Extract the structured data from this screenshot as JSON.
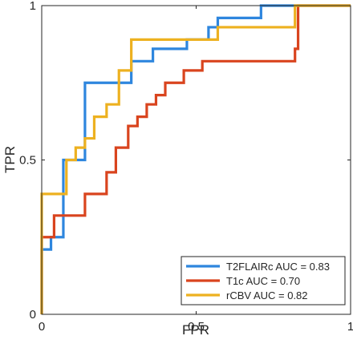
{
  "chart_data": {
    "type": "line",
    "title": "",
    "xlabel": "FPR",
    "ylabel": "TPR",
    "xlim": [
      0,
      1
    ],
    "ylim": [
      0,
      1
    ],
    "xticks": [
      0,
      0.5,
      1
    ],
    "xtick_labels": [
      "0",
      "0.5",
      "1"
    ],
    "yticks": [
      0,
      0.5,
      1
    ],
    "ytick_labels": [
      "0",
      "0.5",
      "1"
    ],
    "grid": false,
    "legend_position": "bottom-right",
    "series": [
      {
        "name": "T2FLAIRc AUC = 0.83",
        "color": "#2E86DE",
        "x": [
          0,
          0,
          0.03,
          0.03,
          0.07,
          0.07,
          0.14,
          0.14,
          0.25,
          0.25,
          0.29,
          0.29,
          0.36,
          0.36,
          0.47,
          0.47,
          0.54,
          0.54,
          0.57,
          0.57,
          0.71,
          0.71,
          0.82,
          0.82,
          1.0
        ],
        "y": [
          0,
          0.21,
          0.21,
          0.25,
          0.25,
          0.5,
          0.5,
          0.75,
          0.75,
          0.75,
          0.75,
          0.82,
          0.82,
          0.86,
          0.86,
          0.89,
          0.89,
          0.93,
          0.93,
          0.96,
          0.96,
          1.0,
          1.0,
          1.0,
          1.0
        ]
      },
      {
        "name": "T1c AUC = 0.70",
        "color": "#D9441E",
        "x": [
          0,
          0,
          0.01,
          0.01,
          0.04,
          0.04,
          0.14,
          0.14,
          0.21,
          0.21,
          0.24,
          0.24,
          0.28,
          0.28,
          0.31,
          0.31,
          0.34,
          0.34,
          0.37,
          0.37,
          0.4,
          0.4,
          0.46,
          0.46,
          0.52,
          0.52,
          0.82,
          0.82,
          0.83,
          0.83,
          1.0
        ],
        "y": [
          0,
          0.25,
          0.25,
          0.25,
          0.25,
          0.32,
          0.32,
          0.39,
          0.39,
          0.46,
          0.46,
          0.54,
          0.54,
          0.61,
          0.61,
          0.64,
          0.64,
          0.68,
          0.68,
          0.71,
          0.71,
          0.75,
          0.75,
          0.79,
          0.79,
          0.82,
          0.82,
          0.86,
          0.86,
          1.0,
          1.0
        ]
      },
      {
        "name": "rCBV AUC = 0.82",
        "color": "#EDB120",
        "x": [
          0,
          0,
          0.08,
          0.08,
          0.11,
          0.11,
          0.14,
          0.14,
          0.17,
          0.17,
          0.21,
          0.21,
          0.25,
          0.25,
          0.29,
          0.29,
          0.32,
          0.32,
          0.57,
          0.57,
          0.82,
          0.82,
          1.0
        ],
        "y": [
          0,
          0.39,
          0.39,
          0.5,
          0.5,
          0.54,
          0.54,
          0.57,
          0.57,
          0.64,
          0.64,
          0.68,
          0.68,
          0.79,
          0.79,
          0.89,
          0.89,
          0.89,
          0.89,
          0.93,
          0.93,
          1.0,
          1.0
        ]
      }
    ]
  }
}
